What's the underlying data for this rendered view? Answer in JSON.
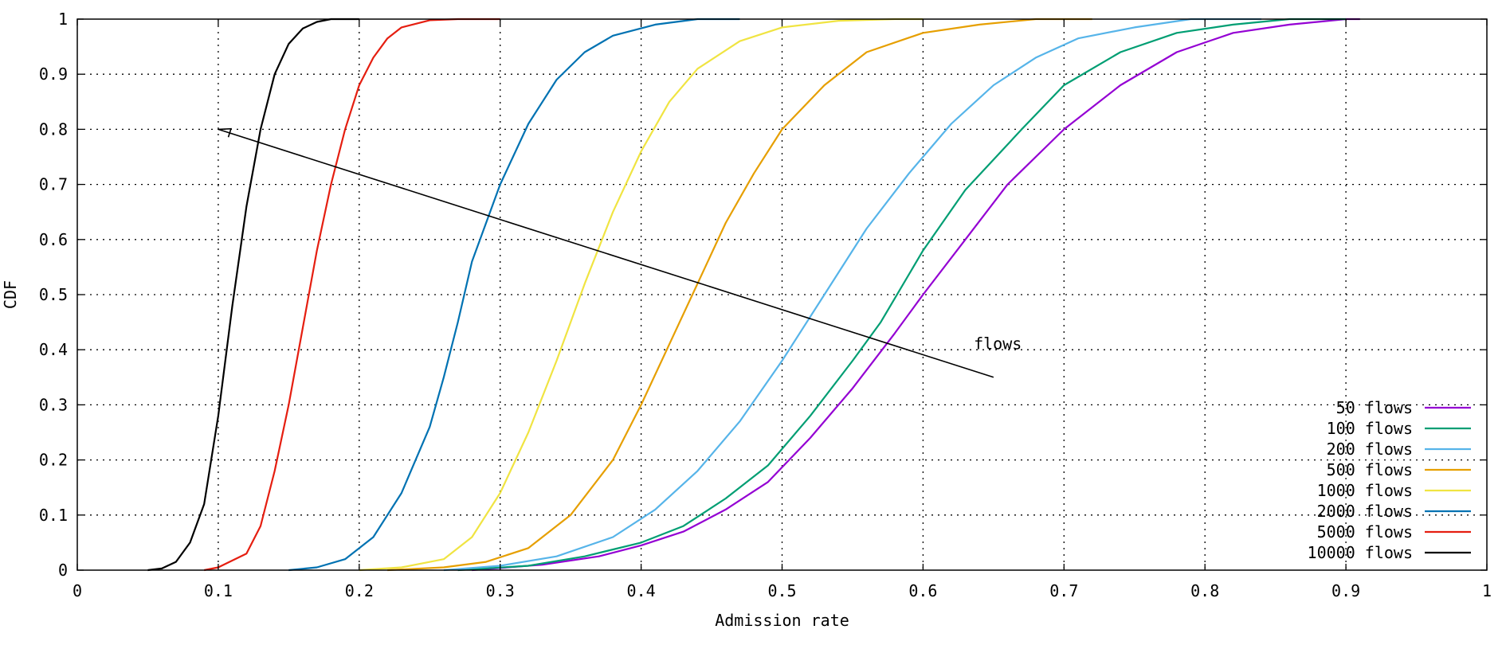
{
  "chart_data": {
    "type": "line",
    "title": "",
    "xlabel": "Admission rate",
    "ylabel": "CDF",
    "xlim": [
      0,
      1
    ],
    "ylim": [
      0,
      1
    ],
    "x_ticks": [
      "0",
      "0.1",
      "0.2",
      "0.3",
      "0.4",
      "0.5",
      "0.6",
      "0.7",
      "0.8",
      "0.9",
      "1"
    ],
    "y_ticks": [
      "0",
      "0.1",
      "0.2",
      "0.3",
      "0.4",
      "0.5",
      "0.6",
      "0.7",
      "0.8",
      "0.9",
      "1"
    ],
    "grid": true,
    "legend_position": "bottom-right",
    "annotation": {
      "text": "flows",
      "arrow_from": [
        0.65,
        0.35
      ],
      "arrow_to": [
        0.1,
        0.8
      ]
    },
    "series": [
      {
        "name": "50 flows",
        "color": "#9400d3",
        "points": [
          [
            0.28,
            0.0
          ],
          [
            0.33,
            0.01
          ],
          [
            0.37,
            0.025
          ],
          [
            0.4,
            0.045
          ],
          [
            0.43,
            0.07
          ],
          [
            0.46,
            0.11
          ],
          [
            0.49,
            0.16
          ],
          [
            0.52,
            0.24
          ],
          [
            0.55,
            0.33
          ],
          [
            0.58,
            0.43
          ],
          [
            0.6,
            0.5
          ],
          [
            0.63,
            0.6
          ],
          [
            0.66,
            0.7
          ],
          [
            0.7,
            0.8
          ],
          [
            0.74,
            0.88
          ],
          [
            0.78,
            0.94
          ],
          [
            0.82,
            0.975
          ],
          [
            0.86,
            0.99
          ],
          [
            0.9,
            1.0
          ],
          [
            0.91,
            1.0
          ]
        ]
      },
      {
        "name": "100 flows",
        "color": "#009e73",
        "points": [
          [
            0.27,
            0.0
          ],
          [
            0.32,
            0.008
          ],
          [
            0.36,
            0.025
          ],
          [
            0.4,
            0.05
          ],
          [
            0.43,
            0.08
          ],
          [
            0.46,
            0.13
          ],
          [
            0.49,
            0.19
          ],
          [
            0.52,
            0.28
          ],
          [
            0.55,
            0.38
          ],
          [
            0.57,
            0.45
          ],
          [
            0.6,
            0.58
          ],
          [
            0.63,
            0.69
          ],
          [
            0.67,
            0.8
          ],
          [
            0.7,
            0.88
          ],
          [
            0.74,
            0.94
          ],
          [
            0.78,
            0.975
          ],
          [
            0.82,
            0.99
          ],
          [
            0.86,
            1.0
          ],
          [
            0.9,
            1.0
          ]
        ]
      },
      {
        "name": "200 flows",
        "color": "#56b4e9",
        "points": [
          [
            0.26,
            0.0
          ],
          [
            0.3,
            0.008
          ],
          [
            0.34,
            0.025
          ],
          [
            0.38,
            0.06
          ],
          [
            0.41,
            0.11
          ],
          [
            0.44,
            0.18
          ],
          [
            0.47,
            0.27
          ],
          [
            0.5,
            0.38
          ],
          [
            0.53,
            0.5
          ],
          [
            0.56,
            0.62
          ],
          [
            0.59,
            0.72
          ],
          [
            0.62,
            0.81
          ],
          [
            0.65,
            0.88
          ],
          [
            0.68,
            0.93
          ],
          [
            0.71,
            0.965
          ],
          [
            0.75,
            0.985
          ],
          [
            0.79,
            1.0
          ],
          [
            0.84,
            1.0
          ]
        ]
      },
      {
        "name": "500 flows",
        "color": "#e69f00",
        "points": [
          [
            0.22,
            0.0
          ],
          [
            0.26,
            0.005
          ],
          [
            0.29,
            0.015
          ],
          [
            0.32,
            0.04
          ],
          [
            0.35,
            0.1
          ],
          [
            0.38,
            0.2
          ],
          [
            0.4,
            0.3
          ],
          [
            0.42,
            0.41
          ],
          [
            0.44,
            0.52
          ],
          [
            0.46,
            0.63
          ],
          [
            0.48,
            0.72
          ],
          [
            0.5,
            0.8
          ],
          [
            0.53,
            0.88
          ],
          [
            0.56,
            0.94
          ],
          [
            0.6,
            0.975
          ],
          [
            0.64,
            0.99
          ],
          [
            0.68,
            1.0
          ],
          [
            0.72,
            1.0
          ]
        ]
      },
      {
        "name": "1000 flows",
        "color": "#f0e442",
        "points": [
          [
            0.2,
            0.0
          ],
          [
            0.23,
            0.005
          ],
          [
            0.26,
            0.02
          ],
          [
            0.28,
            0.06
          ],
          [
            0.3,
            0.14
          ],
          [
            0.32,
            0.25
          ],
          [
            0.34,
            0.38
          ],
          [
            0.36,
            0.52
          ],
          [
            0.38,
            0.65
          ],
          [
            0.4,
            0.76
          ],
          [
            0.42,
            0.85
          ],
          [
            0.44,
            0.91
          ],
          [
            0.47,
            0.96
          ],
          [
            0.5,
            0.985
          ],
          [
            0.54,
            0.997
          ],
          [
            0.58,
            1.0
          ],
          [
            0.6,
            1.0
          ]
        ]
      },
      {
        "name": "2000 flows",
        "color": "#0072b2",
        "points": [
          [
            0.15,
            0.0
          ],
          [
            0.17,
            0.005
          ],
          [
            0.19,
            0.02
          ],
          [
            0.21,
            0.06
          ],
          [
            0.23,
            0.14
          ],
          [
            0.25,
            0.26
          ],
          [
            0.26,
            0.35
          ],
          [
            0.27,
            0.45
          ],
          [
            0.28,
            0.56
          ],
          [
            0.3,
            0.7
          ],
          [
            0.32,
            0.81
          ],
          [
            0.34,
            0.89
          ],
          [
            0.36,
            0.94
          ],
          [
            0.38,
            0.97
          ],
          [
            0.41,
            0.99
          ],
          [
            0.44,
            1.0
          ],
          [
            0.47,
            1.0
          ]
        ]
      },
      {
        "name": "5000 flows",
        "color": "#e51e10",
        "points": [
          [
            0.09,
            0.0
          ],
          [
            0.1,
            0.005
          ],
          [
            0.12,
            0.03
          ],
          [
            0.13,
            0.08
          ],
          [
            0.14,
            0.18
          ],
          [
            0.15,
            0.3
          ],
          [
            0.16,
            0.44
          ],
          [
            0.17,
            0.58
          ],
          [
            0.18,
            0.7
          ],
          [
            0.19,
            0.8
          ],
          [
            0.2,
            0.88
          ],
          [
            0.21,
            0.93
          ],
          [
            0.22,
            0.965
          ],
          [
            0.23,
            0.985
          ],
          [
            0.25,
            0.998
          ],
          [
            0.27,
            1.0
          ],
          [
            0.3,
            1.0
          ]
        ]
      },
      {
        "name": "10000 flows",
        "color": "#000000",
        "points": [
          [
            0.05,
            0.0
          ],
          [
            0.06,
            0.003
          ],
          [
            0.07,
            0.015
          ],
          [
            0.08,
            0.05
          ],
          [
            0.09,
            0.12
          ],
          [
            0.1,
            0.28
          ],
          [
            0.11,
            0.48
          ],
          [
            0.12,
            0.66
          ],
          [
            0.13,
            0.8
          ],
          [
            0.14,
            0.9
          ],
          [
            0.15,
            0.955
          ],
          [
            0.16,
            0.983
          ],
          [
            0.17,
            0.995
          ],
          [
            0.18,
            1.0
          ],
          [
            0.2,
            1.0
          ]
        ]
      }
    ]
  }
}
